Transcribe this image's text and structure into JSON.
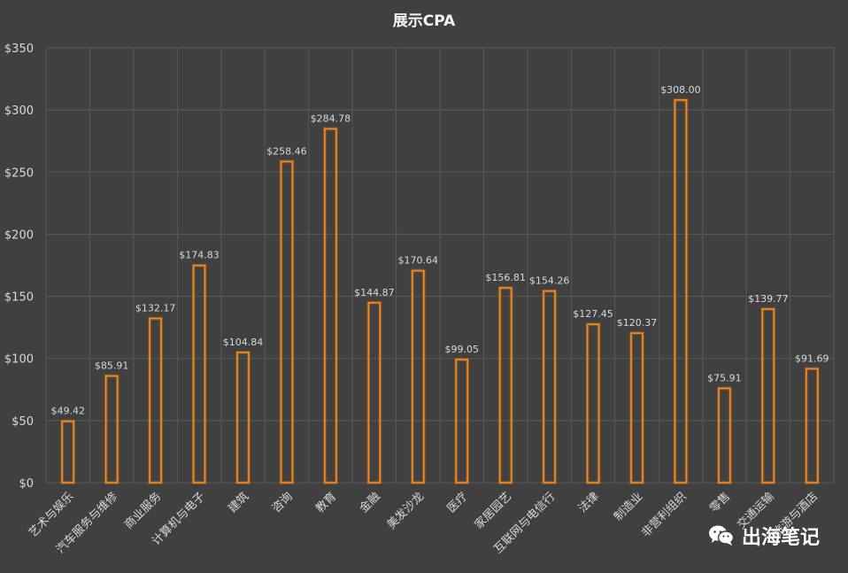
{
  "chart_data": {
    "type": "bar",
    "title": "展示CPA",
    "categories": [
      "艺术与娱乐",
      "汽车服务与维修",
      "商业服务",
      "计算机与电子",
      "建筑",
      "咨询",
      "教育",
      "金融",
      "美发沙龙",
      "医疗",
      "家居园艺",
      "互联网与电信行",
      "法律",
      "制造业",
      "非营利组织",
      "零售",
      "交通运输",
      "旅游与酒店"
    ],
    "values": [
      49.42,
      85.91,
      132.17,
      174.83,
      104.84,
      258.46,
      284.78,
      144.87,
      170.64,
      99.05,
      156.81,
      154.26,
      127.45,
      120.37,
      308.0,
      75.91,
      139.77,
      91.69
    ],
    "data_labels": [
      "$49.42",
      "$85.91",
      "$132.17",
      "$174.83",
      "$104.84",
      "$258.46",
      "$284.78",
      "$144.87",
      "$170.64",
      "$99.05",
      "$156.81",
      "$154.26",
      "$127.45",
      "$120.37",
      "$308.00",
      "$75.91",
      "$139.77",
      "$91.69"
    ],
    "y_ticks": [
      "$0",
      "$50",
      "$100",
      "$150",
      "$200",
      "$250",
      "$300",
      "$350"
    ],
    "ylim": [
      0,
      350
    ],
    "xlabel": "",
    "ylabel": "",
    "grid": true,
    "legend": "none",
    "colors": {
      "background": "#404040",
      "bar_outline": "#ff8c1a",
      "grid": "#595959",
      "text": "#d9d9d9"
    }
  },
  "watermark": {
    "text": "出海笔记",
    "icon": "wechat-icon"
  }
}
